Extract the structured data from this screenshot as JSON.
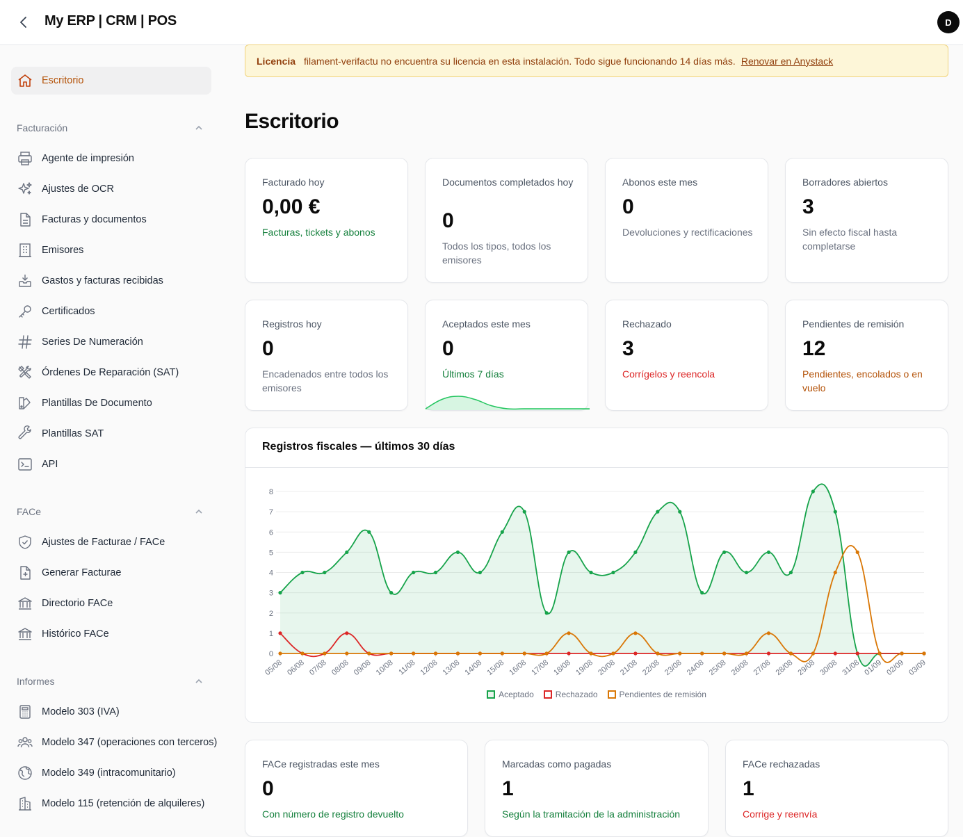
{
  "app": {
    "title": "My ERP | CRM | POS",
    "avatar_initial": "D"
  },
  "sidebar": {
    "active": {
      "label": "Escritorio",
      "icon": "home-icon"
    },
    "groups": [
      {
        "label": "Facturación",
        "items": [
          {
            "label": "Agente de impresión",
            "icon": "printer-icon"
          },
          {
            "label": "Ajustes de OCR",
            "icon": "sparkles-icon"
          },
          {
            "label": "Facturas y documentos",
            "icon": "document-icon"
          },
          {
            "label": "Emisores",
            "icon": "building-icon"
          },
          {
            "label": "Gastos y facturas recibidas",
            "icon": "inbox-icon"
          },
          {
            "label": "Certificados",
            "icon": "key-icon"
          },
          {
            "label": "Series De Numeración",
            "icon": "hashtag-icon"
          },
          {
            "label": "Órdenes De Reparación (SAT)",
            "icon": "tools-icon"
          },
          {
            "label": "Plantillas De Documento",
            "icon": "swatch-icon"
          },
          {
            "label": "Plantillas SAT",
            "icon": "wrench-icon"
          },
          {
            "label": "API",
            "icon": "terminal-icon"
          }
        ]
      },
      {
        "label": "FACe",
        "items": [
          {
            "label": "Ajustes de Facturae / FACe",
            "icon": "shield-check-icon"
          },
          {
            "label": "Generar Facturae",
            "icon": "document-plus-icon"
          },
          {
            "label": "Directorio FACe",
            "icon": "bank-icon"
          },
          {
            "label": "Histórico FACe",
            "icon": "bank-icon"
          }
        ]
      },
      {
        "label": "Informes",
        "items": [
          {
            "label": "Modelo 303 (IVA)",
            "icon": "calculator-icon"
          },
          {
            "label": "Modelo 347 (operaciones con terceros)",
            "icon": "users-icon"
          },
          {
            "label": "Modelo 349 (intracomunitario)",
            "icon": "globe-icon"
          },
          {
            "label": "Modelo 115 (retención de alquileres)",
            "icon": "office-icon"
          }
        ]
      }
    ]
  },
  "banner": {
    "title": "Licencia",
    "message": "filament-verifactu no encuentra su licencia en esta instalación. Todo sigue funcionando 14 días más.",
    "link": "Renovar en Anystack"
  },
  "page_title": "Escritorio",
  "stats_row1": [
    {
      "label": "Facturado hoy",
      "value": "0,00 €",
      "desc": "Facturas, tickets y abonos",
      "tone": "green"
    },
    {
      "label": "Documentos completados hoy",
      "value": "0",
      "desc": "Todos los tipos, todos los emisores",
      "tone": "gray"
    },
    {
      "label": "Abonos este mes",
      "value": "0",
      "desc": "Devoluciones y rectificaciones",
      "tone": "gray"
    },
    {
      "label": "Borradores abiertos",
      "value": "3",
      "desc": "Sin efecto fiscal hasta completarse",
      "tone": "gray"
    }
  ],
  "stats_row2": [
    {
      "label": "Registros hoy",
      "value": "0",
      "desc": "Encadenados entre todos los emisores",
      "tone": "gray"
    },
    {
      "label": "Aceptados este mes",
      "value": "0",
      "desc": "Últimos 7 días",
      "tone": "green"
    },
    {
      "label": "Rechazado",
      "value": "3",
      "desc": "Corrígelos y reencola",
      "tone": "red"
    },
    {
      "label": "Pendientes de remisión",
      "value": "12",
      "desc": "Pendientes, encolados o en vuelo",
      "tone": "amber"
    }
  ],
  "sparkline": {
    "values": [
      0,
      3,
      4,
      3,
      1,
      0,
      0,
      0,
      0,
      0,
      0
    ],
    "color": "#22c55e"
  },
  "chart_data": {
    "type": "line",
    "title": "Registros fiscales — últimos 30 días",
    "categories": [
      "05/08",
      "06/08",
      "07/08",
      "08/08",
      "09/08",
      "10/08",
      "11/08",
      "12/08",
      "13/08",
      "14/08",
      "15/08",
      "16/08",
      "17/08",
      "18/08",
      "19/08",
      "20/08",
      "21/08",
      "22/08",
      "23/08",
      "24/08",
      "25/08",
      "26/08",
      "27/08",
      "28/08",
      "29/08",
      "30/08",
      "31/08",
      "01/09",
      "02/09",
      "03/09"
    ],
    "ylim": [
      0,
      8
    ],
    "yticks": [
      0,
      1,
      2,
      3,
      4,
      5,
      6,
      7,
      8
    ],
    "grid": true,
    "legend_position": "bottom",
    "series": [
      {
        "name": "Aceptado",
        "color": "#16a34a",
        "fill": true,
        "values": [
          3,
          4,
          4,
          5,
          6,
          3,
          4,
          4,
          5,
          4,
          6,
          7,
          2,
          5,
          4,
          4,
          5,
          7,
          7,
          3,
          5,
          4,
          5,
          4,
          8,
          7,
          0,
          0,
          0,
          0
        ]
      },
      {
        "name": "Rechazado",
        "color": "#dc2626",
        "fill": false,
        "values": [
          1,
          0,
          0,
          1,
          0,
          0,
          0,
          0,
          0,
          0,
          0,
          0,
          0,
          0,
          0,
          0,
          0,
          0,
          0,
          0,
          0,
          0,
          0,
          0,
          0,
          0,
          0,
          0,
          0,
          0
        ]
      },
      {
        "name": "Pendientes de remisión",
        "color": "#d97706",
        "fill": false,
        "values": [
          0,
          0,
          0,
          0,
          0,
          0,
          0,
          0,
          0,
          0,
          0,
          0,
          0,
          1,
          0,
          0,
          1,
          0,
          0,
          0,
          0,
          0,
          1,
          0,
          0,
          4,
          5,
          0,
          0,
          0
        ]
      }
    ]
  },
  "stats_row3": [
    {
      "label": "FACe registradas este mes",
      "value": "0",
      "desc": "Con número de registro devuelto",
      "tone": "green"
    },
    {
      "label": "Marcadas como pagadas",
      "value": "1",
      "desc": "Según la tramitación de la administración",
      "tone": "green"
    },
    {
      "label": "FACe rechazadas",
      "value": "1",
      "desc": "Corrige y reenvía",
      "tone": "red"
    }
  ]
}
